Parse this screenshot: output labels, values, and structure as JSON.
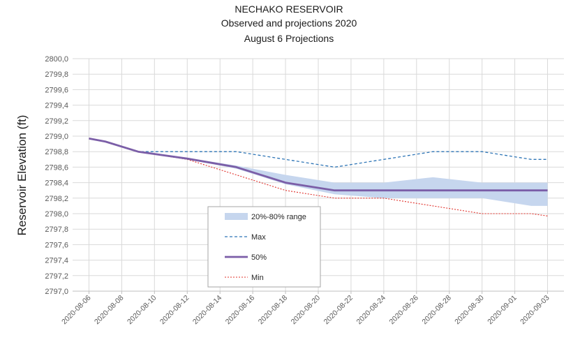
{
  "chart_data": {
    "type": "line",
    "title": [
      "NECHAKO RESERVOIR",
      "Observed and projections 2020",
      "August 6 Projections"
    ],
    "ylabel": "Reservoir Elevation (ft)",
    "xlabel": "",
    "ylim": [
      2797.0,
      2800.0
    ],
    "x_range": [
      "2020-08-05",
      "2020-09-04"
    ],
    "y_ticks": [
      "2797,0",
      "2797,2",
      "2797,4",
      "2797,6",
      "2797,8",
      "2798,0",
      "2798,2",
      "2798,4",
      "2798,6",
      "2798,8",
      "2799,0",
      "2799,2",
      "2799,4",
      "2799,6",
      "2799,8",
      "2800,0"
    ],
    "x_ticks": [
      "2020-08-06",
      "2020-08-08",
      "2020-08-10",
      "2020-08-12",
      "2020-08-14",
      "2020-08-16",
      "2020-08-18",
      "2020-08-20",
      "2020-08-22",
      "2020-08-24",
      "2020-08-26",
      "2020-08-28",
      "2020-08-30",
      "2020-09-01",
      "2020-09-03"
    ],
    "grid": true,
    "legend_position": "center-left",
    "band": {
      "name": "20%-80% range",
      "color": "#c6d6ee",
      "x": [
        "2020-08-06",
        "2020-08-07",
        "2020-08-09",
        "2020-08-12",
        "2020-08-15",
        "2020-08-18",
        "2020-08-21",
        "2020-08-24",
        "2020-08-27",
        "2020-08-30",
        "2020-09-02",
        "2020-09-03"
      ],
      "upper": [
        2798.97,
        2798.93,
        2798.8,
        2798.72,
        2798.62,
        2798.5,
        2798.4,
        2798.4,
        2798.47,
        2798.4,
        2798.4,
        2798.4
      ],
      "lower": [
        2798.97,
        2798.93,
        2798.8,
        2798.7,
        2798.58,
        2798.38,
        2798.25,
        2798.2,
        2798.2,
        2798.2,
        2798.1,
        2798.1
      ]
    },
    "series": [
      {
        "name": "Max",
        "color": "#2e75b6",
        "style": "dashed",
        "x": [
          "2020-08-06",
          "2020-08-07",
          "2020-08-09",
          "2020-08-12",
          "2020-08-15",
          "2020-08-18",
          "2020-08-21",
          "2020-08-24",
          "2020-08-27",
          "2020-08-30",
          "2020-09-02",
          "2020-09-03"
        ],
        "values": [
          2798.97,
          2798.93,
          2798.8,
          2798.8,
          2798.8,
          2798.7,
          2798.6,
          2798.7,
          2798.8,
          2798.8,
          2798.7,
          2798.7
        ]
      },
      {
        "name": "50%",
        "color": "#7b5ea7",
        "style": "solid",
        "x": [
          "2020-08-06",
          "2020-08-07",
          "2020-08-09",
          "2020-08-12",
          "2020-08-15",
          "2020-08-18",
          "2020-08-21",
          "2020-08-24",
          "2020-08-27",
          "2020-08-30",
          "2020-09-02",
          "2020-09-03"
        ],
        "values": [
          2798.97,
          2798.93,
          2798.8,
          2798.71,
          2798.6,
          2798.4,
          2798.3,
          2798.3,
          2798.3,
          2798.3,
          2798.3,
          2798.3
        ]
      },
      {
        "name": "Min",
        "color": "#e0302a",
        "style": "dotted",
        "x": [
          "2020-08-06",
          "2020-08-07",
          "2020-08-09",
          "2020-08-12",
          "2020-08-15",
          "2020-08-18",
          "2020-08-21",
          "2020-08-24",
          "2020-08-27",
          "2020-08-30",
          "2020-09-02",
          "2020-09-03"
        ],
        "values": [
          2798.97,
          2798.93,
          2798.8,
          2798.7,
          2798.5,
          2798.3,
          2798.2,
          2798.2,
          2798.1,
          2798.0,
          2798.0,
          2797.97
        ]
      }
    ]
  }
}
